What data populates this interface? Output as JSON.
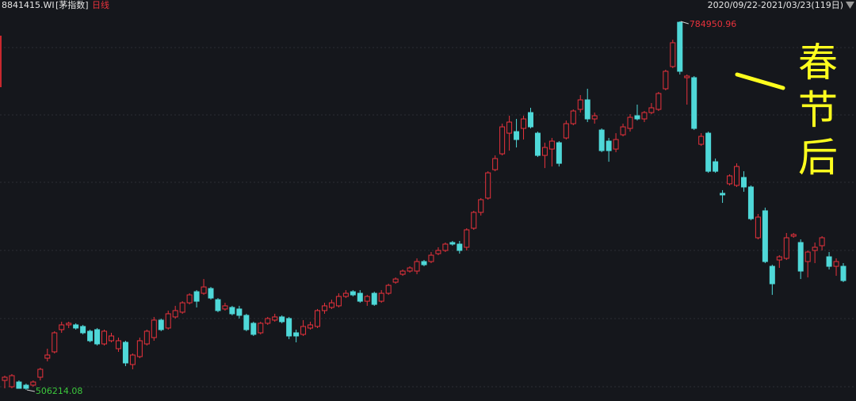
{
  "chart_data": {
    "type": "candlestick",
    "code": "8841415.WI",
    "name": "[茅指数]",
    "period": "日线",
    "range": "2020/09/22-2021/03/23(119日)",
    "annotation": "春节后",
    "up_color": "#e8323c",
    "down_color": "#4fd8d8",
    "open": [
      513400,
      508600,
      512200,
      509800,
      509800,
      515800,
      530200,
      535000,
      551800,
      555400,
      555400,
      554200,
      550600,
      551800,
      541000,
      543400,
      537400,
      542200,
      525400,
      531400,
      541000,
      545800,
      559000,
      553000,
      561400,
      565000,
      572100,
      580500,
      579300,
      582900,
      574500,
      567400,
      568600,
      567400,
      562600,
      556600,
      549400,
      556600,
      559000,
      561400,
      560200,
      549400,
      548200,
      553000,
      554200,
      566200,
      568600,
      569800,
      576900,
      580500,
      579300,
      573300,
      579300,
      573300,
      579300,
      587700,
      593700,
      596100,
      596100,
      603300,
      603300,
      609300,
      611700,
      617700,
      616500,
      614100,
      628500,
      640500,
      651300,
      672800,
      684800,
      700400,
      701600,
      704000,
      716000,
      700400,
      683600,
      688400,
      693200,
      696800,
      707600,
      718400,
      725600,
      711200,
      702800,
      694400,
      688400,
      699200,
      704000,
      713600,
      711200,
      716000,
      718400,
      734000,
      750800,
      784300,
      742400,
      742400,
      692000,
      700400,
      678800,
      654900,
      662100,
      660900,
      666900,
      659700,
      621300,
      641700,
      599700,
      604500,
      605700,
      622500,
      617700,
      603300,
      611700,
      615300,
      606900,
      599700,
      599700
    ],
    "high": [
      517000,
      518200,
      513400,
      511000,
      513400,
      523000,
      537400,
      550600,
      557800,
      557800,
      556600,
      555400,
      551800,
      553000,
      551800,
      549400,
      545800,
      543400,
      533800,
      545800,
      551800,
      561400,
      560200,
      566200,
      569800,
      573300,
      579300,
      581700,
      590100,
      584100,
      575700,
      572100,
      569800,
      569800,
      563800,
      557800,
      557800,
      561400,
      563800,
      562600,
      561400,
      551800,
      559000,
      557800,
      567400,
      572100,
      574500,
      579300,
      581700,
      581700,
      581700,
      578100,
      580500,
      581700,
      586500,
      591300,
      597300,
      599700,
      605700,
      604500,
      610500,
      614100,
      617700,
      618900,
      618900,
      628500,
      641700,
      651300,
      671600,
      683600,
      707600,
      713600,
      711200,
      713600,
      719600,
      701600,
      693200,
      696800,
      694400,
      710000,
      718400,
      729200,
      734000,
      716000,
      704000,
      696800,
      700400,
      707600,
      714800,
      722000,
      717200,
      723200,
      731600,
      748400,
      771100,
      784950.96,
      744800,
      743600,
      700400,
      701600,
      681200,
      657300,
      669300,
      677600,
      671600,
      660900,
      639300,
      644100,
      600900,
      608100,
      624900,
      624900,
      620100,
      611700,
      617700,
      622500,
      610500,
      605700,
      602100
    ],
    "low": [
      507400,
      507400,
      507400,
      506214.08,
      508600,
      513400,
      527800,
      533800,
      549400,
      553000,
      551800,
      548200,
      542200,
      539800,
      539800,
      542200,
      535000,
      524200,
      521800,
      530200,
      539800,
      543400,
      550600,
      551800,
      560200,
      563800,
      570900,
      568600,
      578100,
      574500,
      565000,
      566200,
      562600,
      560200,
      550600,
      547000,
      548200,
      555400,
      557800,
      556600,
      544600,
      542200,
      547000,
      551800,
      553000,
      563800,
      567400,
      568600,
      575700,
      576900,
      572100,
      569800,
      569800,
      572100,
      578100,
      586500,
      592500,
      594900,
      593700,
      599700,
      602100,
      608100,
      610500,
      615300,
      609300,
      611700,
      627300,
      638100,
      650100,
      671600,
      683600,
      687200,
      689600,
      695600,
      704000,
      682400,
      674000,
      675200,
      675200,
      695600,
      706400,
      716000,
      708800,
      707600,
      686000,
      678800,
      686000,
      698000,
      701600,
      710000,
      708800,
      714800,
      717200,
      732800,
      749600,
      744800,
      722000,
      702800,
      690800,
      670400,
      670400,
      647700,
      660900,
      659700,
      656100,
      634500,
      620100,
      602100,
      578100,
      598500,
      604500,
      621300,
      590100,
      591300,
      602100,
      611700,
      597300,
      592500,
      587700
    ],
    "close": [
      515800,
      517000,
      507400,
      507400,
      512200,
      521800,
      532600,
      549400,
      555400,
      556600,
      553000,
      549400,
      543400,
      541000,
      550600,
      547000,
      543400,
      526600,
      532600,
      543400,
      550600,
      559000,
      551800,
      563800,
      566200,
      572100,
      578100,
      573300,
      584100,
      575700,
      566200,
      569800,
      563800,
      562600,
      551800,
      548200,
      556600,
      560200,
      561400,
      557800,
      547000,
      547000,
      554200,
      555400,
      566200,
      569800,
      572100,
      576900,
      579300,
      578100,
      573300,
      576900,
      570900,
      579300,
      585300,
      590100,
      596100,
      598500,
      603300,
      600900,
      608100,
      611700,
      616500,
      616500,
      611700,
      627300,
      640500,
      650100,
      670400,
      681200,
      705200,
      708800,
      695600,
      711200,
      705200,
      683600,
      689600,
      694400,
      677600,
      707600,
      717200,
      725600,
      711200,
      713600,
      687200,
      687200,
      695600,
      705200,
      712400,
      711200,
      716000,
      719600,
      730400,
      747200,
      768800,
      747200,
      743600,
      704000,
      698000,
      671600,
      671600,
      653700,
      668100,
      675200,
      659700,
      635700,
      636900,
      603300,
      586500,
      606900,
      621300,
      623700,
      596100,
      610500,
      614100,
      621300,
      599700,
      603300,
      588900
    ]
  }
}
